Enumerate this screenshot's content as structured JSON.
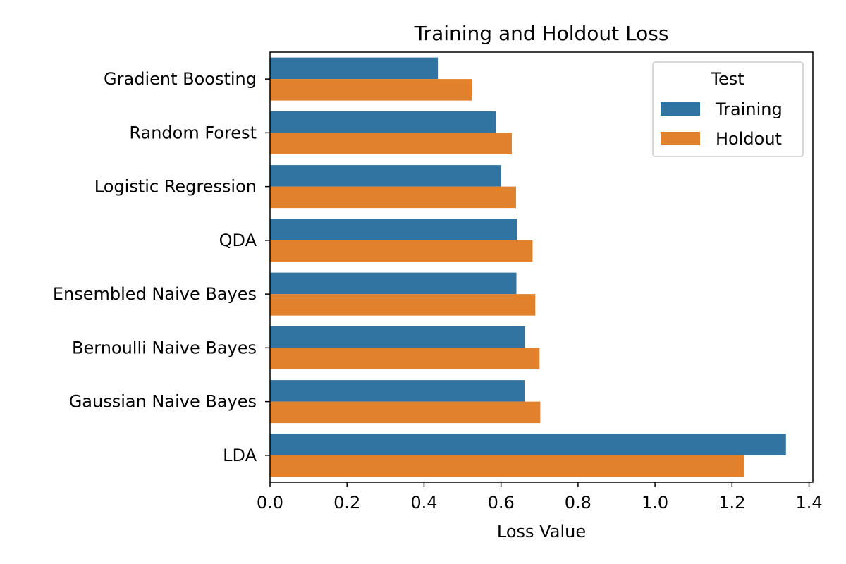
{
  "chart_data": {
    "type": "bar",
    "orientation": "horizontal",
    "title": "Training and Holdout Loss",
    "xlabel": "Loss Value",
    "ylabel": "",
    "xlim": [
      0,
      1.41
    ],
    "xticks": [
      "0.0",
      "0.2",
      "0.4",
      "0.6",
      "0.8",
      "1.0",
      "1.2",
      "1.4"
    ],
    "grid": false,
    "categories": [
      "Gradient Boosting",
      "Random Forest",
      "Logistic Regression",
      "QDA",
      "Ensembled Naive Bayes",
      "Bernoulli Naive Bayes",
      "Gaussian Naive Bayes",
      "LDA"
    ],
    "series": [
      {
        "name": "Training",
        "color": "#3274a1",
        "values": [
          0.436,
          0.586,
          0.6,
          0.641,
          0.64,
          0.662,
          0.661,
          1.34
        ]
      },
      {
        "name": "Holdout",
        "color": "#e1812c",
        "values": [
          0.524,
          0.628,
          0.639,
          0.682,
          0.689,
          0.7,
          0.702,
          1.232
        ]
      }
    ],
    "legend": {
      "title": "Test",
      "position": "top-right"
    }
  }
}
